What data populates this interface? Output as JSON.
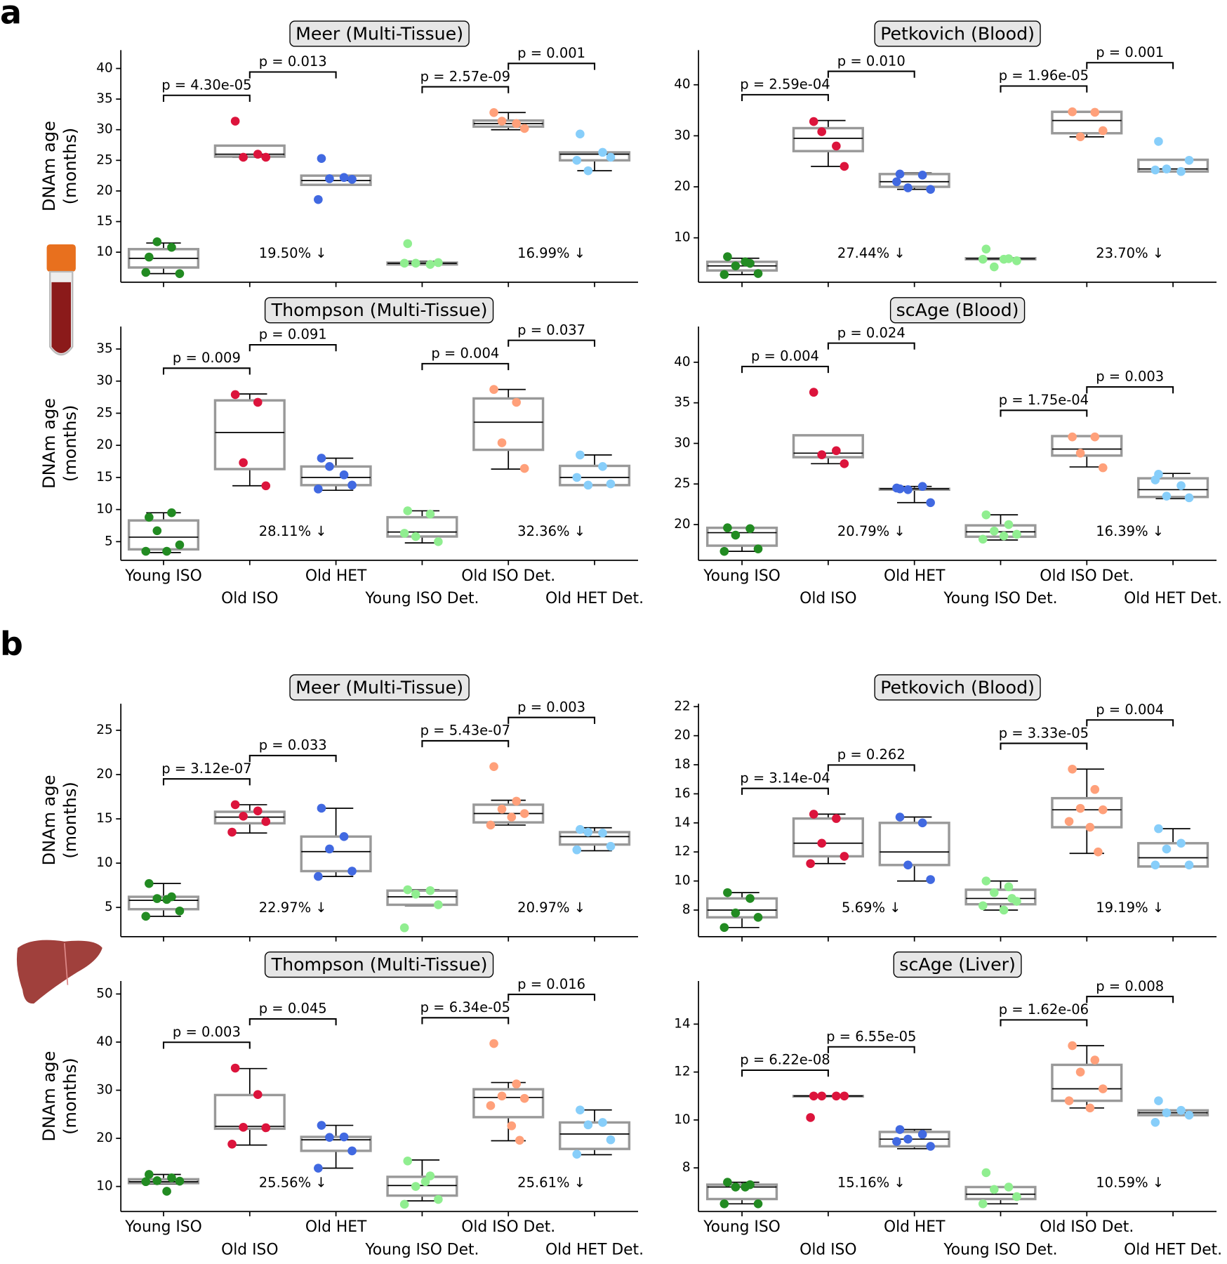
{
  "panel_labels": [
    "a",
    "b"
  ],
  "chart_data": [
    {
      "type": "box",
      "title": "Meer (Multi-Tissue)",
      "ylabel": [
        "DNAm age",
        "(months)"
      ],
      "ylim": [
        5.1,
        43
      ],
      "yticks": [
        10,
        15,
        20,
        25,
        30,
        35,
        40
      ],
      "pvalues": [
        "p = 4.30e-05",
        "p = 0.013",
        "p = 2.57e-09",
        "p = 0.001"
      ],
      "reductions": [
        "19.50% ↓",
        "16.99% ↓"
      ],
      "series": [
        {
          "color": "#228b22",
          "box": [
            6.5,
            7.5,
            9,
            10.5,
            11.5
          ],
          "points": [
            9.2,
            10.8,
            11.7,
            6.5,
            6.7
          ]
        },
        {
          "color": "#dc143c",
          "box": [
            25.5,
            25.6,
            26,
            27.4,
            27.4
          ],
          "points": [
            31.4,
            26,
            25.5,
            25.5
          ]
        },
        {
          "color": "#4169e1",
          "box": [
            21,
            21,
            21.7,
            22.5,
            22.5
          ],
          "points": [
            25.3,
            22.2,
            22,
            21.9,
            18.6
          ]
        },
        {
          "color": "#90ee90",
          "box": [
            8,
            8,
            8.2,
            8.3,
            8.5
          ],
          "points": [
            11.4,
            8,
            8.2,
            8.3,
            8.2
          ]
        },
        {
          "color": "#ffa07a",
          "box": [
            30,
            30.5,
            31,
            31.5,
            32.8
          ],
          "points": [
            32.8,
            31,
            31.4,
            30.2
          ]
        },
        {
          "color": "#87cefa",
          "box": [
            23.3,
            25,
            26,
            26.3,
            26.3
          ],
          "points": [
            29.3,
            26.3,
            23.3,
            25.5,
            25
          ]
        }
      ]
    },
    {
      "type": "box",
      "title": "Petkovich (Blood)",
      "ylim": [
        1.3,
        46.8
      ],
      "yticks": [
        10,
        20,
        30,
        40
      ],
      "pvalues": [
        "p = 2.59e-04",
        "p = 0.010",
        "p = 1.96e-05",
        "p = 0.001"
      ],
      "reductions": [
        "27.44% ↓",
        "23.70% ↓"
      ],
      "series": [
        {
          "color": "#228b22",
          "box": [
            2.8,
            3.6,
            4.5,
            5.3,
            6
          ],
          "points": [
            6.3,
            5,
            4.5,
            3,
            2.8,
            5.3
          ]
        },
        {
          "color": "#dc143c",
          "box": [
            24,
            27,
            29.5,
            31.5,
            33
          ],
          "points": [
            32.8,
            28,
            30.8,
            24
          ]
        },
        {
          "color": "#4169e1",
          "box": [
            19.5,
            20,
            21,
            22.5,
            22.7
          ],
          "points": [
            22.5,
            22.3,
            19.8,
            19.5,
            21
          ]
        },
        {
          "color": "#90ee90",
          "box": [
            5.8,
            5.8,
            5.9,
            6,
            6
          ],
          "points": [
            7.8,
            5.9,
            4.3,
            5.5,
            5.8,
            5.8
          ]
        },
        {
          "color": "#ffa07a",
          "box": [
            29.8,
            30.5,
            33,
            34.7,
            34.7
          ],
          "points": [
            34.7,
            34.6,
            29.8,
            31
          ]
        },
        {
          "color": "#87cefa",
          "box": [
            23,
            23,
            23.5,
            25.3,
            25.3
          ],
          "points": [
            28.9,
            23,
            23.5,
            25.2,
            23.3
          ]
        }
      ]
    },
    {
      "type": "box",
      "title": "Thompson (Multi-Tissue)",
      "ylabel": [
        "DNAm age",
        "(months)"
      ],
      "ylim": [
        2.1,
        38.5
      ],
      "yticks": [
        5,
        10,
        15,
        20,
        25,
        30,
        35
      ],
      "categories": [
        "Young ISO",
        "Old ISO",
        "Old HET",
        "Young ISO Det.",
        "Old ISO Det.",
        "Old HET Det."
      ],
      "pvalues": [
        "p = 0.009",
        "p = 0.091",
        "p = 0.004",
        "p = 0.037"
      ],
      "reductions": [
        "28.11% ↓",
        "32.36% ↓"
      ],
      "series": [
        {
          "color": "#228b22",
          "box": [
            3.3,
            3.8,
            5.7,
            8.3,
            9.5
          ],
          "points": [
            8.8,
            9.5,
            6.7,
            4.5,
            3.5,
            3.5
          ]
        },
        {
          "color": "#dc143c",
          "box": [
            13.7,
            16.3,
            22,
            27,
            28
          ],
          "points": [
            27.9,
            26.7,
            17.3,
            13.7
          ]
        },
        {
          "color": "#4169e1",
          "box": [
            13,
            13.8,
            15,
            16.7,
            18
          ],
          "points": [
            18,
            15.4,
            16.7,
            13.8,
            13.2
          ]
        },
        {
          "color": "#90ee90",
          "box": [
            4.8,
            5.8,
            6.5,
            8.8,
            9.8
          ],
          "points": [
            9.8,
            9.3,
            5.8,
            5,
            6.3
          ]
        },
        {
          "color": "#ffa07a",
          "box": [
            16.3,
            19.3,
            23.6,
            27.3,
            28.7
          ],
          "points": [
            28.7,
            26.7,
            20.4,
            16.4
          ]
        },
        {
          "color": "#87cefa",
          "box": [
            13.8,
            13.8,
            15,
            16.8,
            18.5
          ],
          "points": [
            18.5,
            16.7,
            13.8,
            14,
            15
          ]
        }
      ]
    },
    {
      "type": "box",
      "title": "scAge (Blood)",
      "ylim": [
        15.6,
        44.4
      ],
      "yticks": [
        20,
        25,
        30,
        35,
        40
      ],
      "categories": [
        "Young ISO",
        "Old ISO",
        "Old HET",
        "Young ISO Det.",
        "Old ISO Det.",
        "Old HET Det."
      ],
      "pvalues": [
        "p = 0.004",
        "p = 0.024",
        "p = 1.75e-04",
        "p = 0.003"
      ],
      "reductions": [
        "20.79% ↓",
        "16.39% ↓"
      ],
      "series": [
        {
          "color": "#228b22",
          "box": [
            16.7,
            17.4,
            19,
            19.6,
            19.6
          ],
          "points": [
            19.6,
            19.5,
            18.7,
            17,
            16.7
          ]
        },
        {
          "color": "#dc143c",
          "box": [
            27.5,
            28.3,
            28.8,
            31,
            31
          ],
          "points": [
            36.3,
            29.1,
            28.6,
            27.5
          ]
        },
        {
          "color": "#4169e1",
          "box": [
            22.7,
            24.3,
            24.4,
            24.4,
            24.7
          ],
          "points": [
            24.4,
            24.7,
            24.3,
            22.7,
            24.5
          ]
        },
        {
          "color": "#90ee90",
          "box": [
            18.1,
            18.5,
            19.1,
            19.9,
            21.2
          ],
          "points": [
            21.2,
            20,
            19.2,
            18.8,
            18.2,
            18.6
          ]
        },
        {
          "color": "#ffa07a",
          "box": [
            27.1,
            28.5,
            29.3,
            30.9,
            30.9
          ],
          "points": [
            30.8,
            30.8,
            28.8,
            27
          ]
        },
        {
          "color": "#87cefa",
          "box": [
            23.2,
            23.4,
            24.3,
            25.7,
            26.3
          ],
          "points": [
            26.2,
            24.8,
            23.5,
            23.3,
            25.5
          ]
        }
      ]
    },
    {
      "type": "box",
      "title": "Meer (Multi-Tissue)",
      "ylabel": [
        "DNAm age",
        "(months)"
      ],
      "ylim": [
        1.7,
        28
      ],
      "yticks": [
        5,
        10,
        15,
        20,
        25
      ],
      "pvalues": [
        "p = 3.12e-07",
        "p = 0.033",
        "p = 5.43e-07",
        "p = 0.003"
      ],
      "reductions": [
        "22.97% ↓",
        "20.97% ↓"
      ],
      "series": [
        {
          "color": "#228b22",
          "box": [
            4,
            4.8,
            5.8,
            6.2,
            7.7
          ],
          "points": [
            7.7,
            6.2,
            6,
            4.6,
            4,
            5.9
          ]
        },
        {
          "color": "#dc143c",
          "box": [
            13.4,
            14.5,
            15.2,
            15.8,
            16.6
          ],
          "points": [
            16.6,
            15.9,
            15.3,
            14.7,
            13.5
          ]
        },
        {
          "color": "#4169e1",
          "box": [
            8.5,
            9.1,
            11.3,
            13,
            16.2
          ],
          "points": [
            16.2,
            13,
            11.6,
            9.1,
            8.5
          ]
        },
        {
          "color": "#90ee90",
          "box": [
            5.2,
            5.3,
            6.2,
            6.9,
            7
          ],
          "points": [
            7,
            6.9,
            6.5,
            5.3,
            2.7
          ]
        },
        {
          "color": "#ffa07a",
          "box": [
            14.3,
            14.6,
            15.6,
            16.6,
            17.1
          ],
          "points": [
            20.9,
            17,
            16.1,
            15.6,
            14.3,
            15.2
          ]
        },
        {
          "color": "#87cefa",
          "box": [
            11.4,
            12.1,
            13,
            13.5,
            14
          ],
          "points": [
            13.8,
            13.4,
            13.5,
            11.9,
            11.5
          ]
        }
      ]
    },
    {
      "type": "box",
      "title": "Petkovich (Blood)",
      "ylim": [
        6.17,
        22.2
      ],
      "yticks": [
        8,
        10,
        12,
        14,
        16,
        18,
        20,
        22
      ],
      "pvalues": [
        "p = 3.14e-04",
        "p = 0.262",
        "p = 3.33e-05",
        "p = 0.004"
      ],
      "reductions": [
        "5.69% ↓",
        "19.19% ↓"
      ],
      "series": [
        {
          "color": "#228b22",
          "box": [
            6.8,
            7.5,
            8,
            8.8,
            9.2
          ],
          "points": [
            9.2,
            8.8,
            7.8,
            7.5,
            6.8
          ]
        },
        {
          "color": "#dc143c",
          "box": [
            11.2,
            11.7,
            12.6,
            14.3,
            14.6
          ],
          "points": [
            14.6,
            14.3,
            12.6,
            11.7,
            11.2
          ]
        },
        {
          "color": "#4169e1",
          "box": [
            10,
            11.1,
            12,
            14,
            14.4
          ],
          "points": [
            14.4,
            14,
            11.1,
            10.1
          ]
        },
        {
          "color": "#90ee90",
          "box": [
            8,
            8.4,
            8.8,
            9.4,
            10
          ],
          "points": [
            10,
            9.6,
            9.2,
            8.6,
            8.3,
            8,
            8.8
          ]
        },
        {
          "color": "#ffa07a",
          "box": [
            11.9,
            13.7,
            14.9,
            15.7,
            17.7
          ],
          "points": [
            17.7,
            16.3,
            15,
            14.9,
            14.1,
            13.7,
            12
          ]
        },
        {
          "color": "#87cefa",
          "box": [
            11,
            11,
            11.6,
            12.6,
            13.6
          ],
          "points": [
            13.6,
            12.6,
            12.2,
            11.1,
            11.1
          ]
        }
      ]
    },
    {
      "type": "box",
      "title": "Thompson (Multi-Tissue)",
      "ylabel": [
        "DNAm age",
        "(months)"
      ],
      "ylim": [
        4.8,
        52.7
      ],
      "yticks": [
        10,
        20,
        30,
        40,
        50
      ],
      "categories": [
        "Young ISO",
        "Old ISO",
        "Old HET",
        "Young ISO Det.",
        "Old ISO Det.",
        "Old HET Det."
      ],
      "pvalues": [
        "p = 0.003",
        "p = 0.045",
        "p = 6.34e-05",
        "p = 0.016"
      ],
      "reductions": [
        "25.56% ↓",
        "25.61% ↓"
      ],
      "series": [
        {
          "color": "#228b22",
          "box": [
            10.5,
            10.7,
            11,
            11.5,
            12.5
          ],
          "points": [
            12.5,
            11.8,
            11.2,
            11.1,
            11,
            9
          ]
        },
        {
          "color": "#dc143c",
          "box": [
            18.6,
            22,
            22.5,
            29,
            34.5
          ],
          "points": [
            34.6,
            29.1,
            22.3,
            22.2,
            18.8
          ]
        },
        {
          "color": "#4169e1",
          "box": [
            13.8,
            17.4,
            19.7,
            20.3,
            22.7
          ],
          "points": [
            22.7,
            20.3,
            20.2,
            17.4,
            13.8
          ]
        },
        {
          "color": "#90ee90",
          "box": [
            7,
            8.1,
            10.2,
            12,
            15.5
          ],
          "points": [
            15.3,
            12.2,
            10,
            7.3,
            6.3,
            11
          ]
        },
        {
          "color": "#ffa07a",
          "box": [
            19.5,
            24.4,
            28.5,
            30.2,
            31.6
          ],
          "points": [
            39.7,
            31.3,
            28.8,
            28.3,
            26.8,
            22.6,
            19.6
          ]
        },
        {
          "color": "#87cefa",
          "box": [
            16.6,
            17.8,
            20.9,
            23.3,
            25.9
          ],
          "points": [
            25.9,
            23.3,
            22.8,
            19.7,
            16.7
          ]
        }
      ]
    },
    {
      "type": "box",
      "title": "scAge (Liver)",
      "ylim": [
        6.18,
        15.8
      ],
      "yticks": [
        8,
        10,
        12,
        14
      ],
      "categories": [
        "Young ISO",
        "Old ISO",
        "Old HET",
        "Young ISO Det.",
        "Old ISO Det.",
        "Old HET Det."
      ],
      "pvalues": [
        "p = 6.22e-08",
        "p = 6.55e-05",
        "p = 1.62e-06",
        "p = 0.008"
      ],
      "reductions": [
        "15.16% ↓",
        "10.59% ↓"
      ],
      "series": [
        {
          "color": "#228b22",
          "box": [
            6.5,
            6.7,
            7.2,
            7.3,
            7.4
          ],
          "points": [
            7.4,
            7.3,
            7.2,
            6.5,
            6.5,
            7.2
          ]
        },
        {
          "color": "#dc143c",
          "box": [
            11,
            11,
            11,
            11,
            11
          ],
          "points": [
            11,
            11,
            11,
            11,
            10.1
          ]
        },
        {
          "color": "#4169e1",
          "box": [
            8.8,
            8.9,
            9.2,
            9.5,
            9.6
          ],
          "points": [
            9.6,
            9.4,
            9.2,
            8.9,
            9.1
          ]
        },
        {
          "color": "#90ee90",
          "box": [
            6.5,
            6.7,
            6.9,
            7.2,
            7.2
          ],
          "points": [
            7.8,
            7.2,
            7.1,
            6.8,
            6.5
          ]
        },
        {
          "color": "#ffa07a",
          "box": [
            10.5,
            10.8,
            11.3,
            12.3,
            13.1
          ],
          "points": [
            13.1,
            12.5,
            12,
            11.3,
            10.8,
            10.5
          ]
        },
        {
          "color": "#87cefa",
          "box": [
            10.2,
            10.2,
            10.3,
            10.4,
            10.4
          ],
          "points": [
            10.8,
            10.4,
            10.3,
            10.2,
            9.9
          ]
        }
      ]
    }
  ]
}
